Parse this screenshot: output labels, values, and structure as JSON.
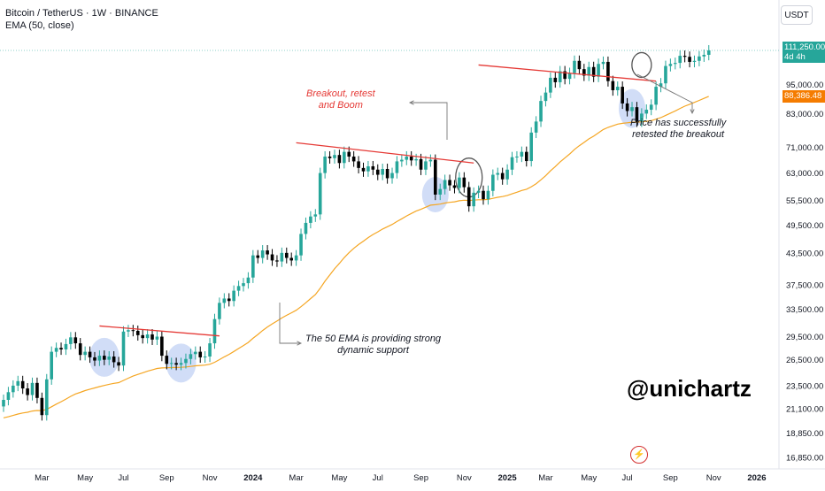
{
  "header": {
    "symbol_line": "Bitcoin / TetherUS · 1W · BINANCE",
    "indicator_line": "EMA (50, close)"
  },
  "currency_button": "USDT",
  "watermark": "@unichartz",
  "annotations": {
    "breakout": [
      "Breakout, retest",
      "and Boom"
    ],
    "retested": [
      "Price has successfully",
      "retested the breakout"
    ],
    "ema_support": [
      "The 50 EMA is providing strong",
      "dynamic support"
    ]
  },
  "price_tags": {
    "last_price": "111,250.00",
    "countdown": "4d 4h",
    "ema_value": "88,386.48"
  },
  "colors": {
    "up": "#26a69a",
    "down": "#000000",
    "ema": "#f5a623",
    "trendline": "#e53935",
    "circle_blue": "#c5d5f5",
    "last_price_bg": "#26a69a",
    "ema_tag_bg": "#f57c00"
  },
  "chart_data": {
    "type": "candlestick",
    "interval": "1W",
    "y_scale": "log",
    "ylim": [
      16850,
      125000
    ],
    "y_ticks": [
      "111,250.00",
      "95,000.00",
      "83,000.00",
      "71,000.00",
      "63,000.00",
      "55,500.00",
      "49,500.00",
      "43,500.00",
      "37,500.00",
      "33,500.00",
      "29,500.00",
      "26,500.00",
      "23,500.00",
      "21,100.00",
      "18,850.00",
      "16,850.00"
    ],
    "y_tick_values": [
      111250,
      95000,
      83000,
      71000,
      63000,
      55500,
      49500,
      43500,
      37500,
      33500,
      29500,
      26500,
      23500,
      21100,
      18850,
      16850
    ],
    "x_ticks": [
      "Mar",
      "May",
      "Jul",
      "Sep",
      "Nov",
      "2024",
      "Mar",
      "May",
      "Jul",
      "Sep",
      "Nov",
      "2025",
      "Mar",
      "May",
      "Jul",
      "Sep",
      "Nov",
      "2026"
    ],
    "x_tick_week_index": [
      8,
      17,
      25,
      34,
      43,
      52,
      61,
      70,
      78,
      87,
      96,
      105,
      113,
      122,
      130,
      139,
      148,
      157
    ],
    "closes": [
      22000,
      22800,
      23500,
      24000,
      23200,
      22500,
      23800,
      22200,
      20500,
      24200,
      27500,
      28000,
      27800,
      28500,
      29400,
      28600,
      27100,
      27500,
      26800,
      26400,
      27000,
      26500,
      26900,
      26200,
      25800,
      30200,
      30400,
      30300,
      29700,
      29300,
      29800,
      29100,
      29500,
      27000,
      26000,
      26100,
      25900,
      26100,
      26600,
      27200,
      27500,
      26800,
      26900,
      28600,
      32000,
      34500,
      35200,
      34800,
      36500,
      37300,
      37800,
      38800,
      43000,
      42500,
      44000,
      43200,
      42000,
      41800,
      43500,
      42500,
      42000,
      43000,
      47500,
      50000,
      51500,
      52000,
      63000,
      68000,
      67500,
      68500,
      66000,
      69500,
      68000,
      66500,
      64500,
      63500,
      65000,
      64000,
      62500,
      64200,
      61500,
      63000,
      66500,
      67000,
      68000,
      66800,
      67200,
      64000,
      66500,
      67000,
      57000,
      58500,
      61000,
      59500,
      58800,
      61700,
      59000,
      54000,
      57500,
      58000,
      55800,
      58000,
      62500,
      63000,
      61200,
      64000,
      67800,
      68000,
      69500,
      66600,
      76000,
      80000,
      88000,
      91500,
      98000,
      96000,
      101000,
      97500,
      100200,
      106000,
      102000,
      99000,
      103000,
      98500,
      104500,
      105500,
      96500,
      92500,
      94000,
      87000,
      84000,
      85500,
      80000,
      83000,
      84500,
      86500,
      94000,
      95500,
      103500,
      104500,
      105000,
      108500,
      108000,
      105500,
      106000,
      108200,
      109000,
      111250
    ]
  }
}
